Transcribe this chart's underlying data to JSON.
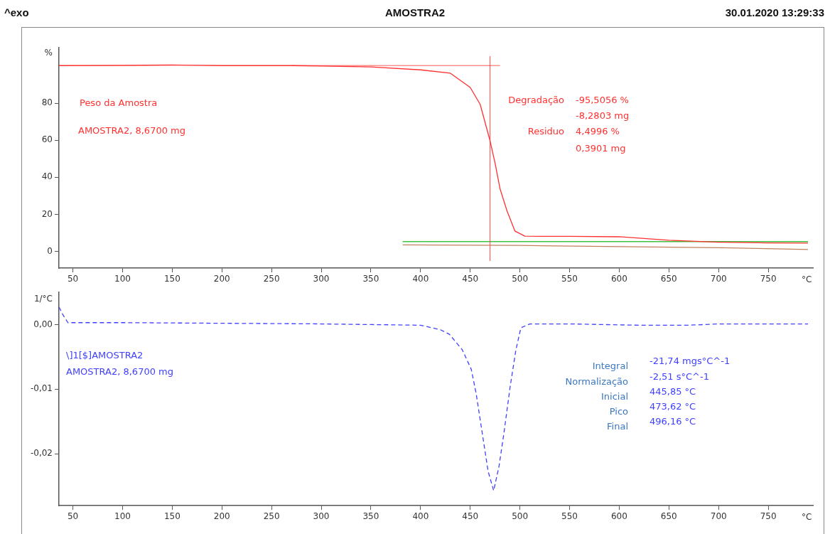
{
  "chart_data": [
    {
      "type": "line",
      "title": "AMOSTRA2",
      "xlabel": "°C",
      "ylabel": "%",
      "xlim": [
        36,
        795
      ],
      "ylim": [
        -9,
        110
      ],
      "xticks": [
        50,
        100,
        150,
        200,
        250,
        300,
        350,
        400,
        450,
        500,
        550,
        600,
        650,
        700,
        750
      ],
      "yticks": [
        0,
        20,
        40,
        60,
        80
      ],
      "grid": false,
      "legend": false,
      "marker": "none",
      "line_style": "solid",
      "series": [
        {
          "color": "#ff3030",
          "x": [
            36,
            40,
            100,
            150,
            200,
            270,
            300,
            350,
            400,
            430,
            450,
            460,
            470,
            475,
            480,
            487,
            495,
            505,
            550,
            600,
            650,
            700,
            750,
            790
          ],
          "values": [
            100.3,
            100.3,
            100.4,
            100.6,
            100.3,
            100.3,
            100.1,
            99.6,
            98,
            96.2,
            88.5,
            79.4,
            59.6,
            47.7,
            33.8,
            21.9,
            11,
            8.2,
            8.1,
            7.9,
            6,
            5,
            4.6,
            4.5
          ]
        },
        {
          "color": "#ff9090",
          "x": [
            270,
            480
          ],
          "values": [
            100.3,
            100.3
          ]
        },
        {
          "color": "#40c040",
          "x": [
            382,
            790
          ],
          "values": [
            5.3,
            5.3
          ]
        },
        {
          "color": "#c08060",
          "x": [
            382,
            500,
            700,
            790
          ],
          "values": [
            3.5,
            3.2,
            2,
            1
          ]
        }
      ],
      "ref_lines": [
        {
          "axis": "x",
          "value": 470,
          "color": "#ff4040"
        }
      ],
      "annotations": [
        "^exo",
        "30.01.2020 13:29:33",
        "Peso da Amostra",
        "AMOSTRA2, 8,6700 mg",
        "Degradação",
        "-95,5056 %",
        "-8,2803 mg",
        "Residuo",
        "4,4996 %",
        "0,3901 mg"
      ]
    },
    {
      "type": "line",
      "xlabel": "°C",
      "ylabel": "1/°C",
      "xlim": [
        36,
        795
      ],
      "ylim": [
        -0.028,
        0.005
      ],
      "xticks": [
        50,
        100,
        150,
        200,
        250,
        300,
        350,
        400,
        450,
        500,
        550,
        600,
        650,
        700,
        750
      ],
      "yticks": [
        {
          "value": 0,
          "label": "0,00"
        },
        {
          "value": -0.01,
          "label": "-0,01"
        },
        {
          "value": -0.02,
          "label": "-0,02"
        }
      ],
      "grid": false,
      "legend": false,
      "marker": "none",
      "line_style": "dashed",
      "series": [
        {
          "color": "#4040ff",
          "x": [
            36,
            40,
            45,
            100,
            200,
            300,
            350,
            400,
            406,
            420,
            429,
            442,
            451,
            456,
            462,
            468,
            473.6,
            479,
            484,
            490,
            496,
            501,
            510,
            550,
            620,
            650,
            670,
            700,
            790
          ],
          "values": [
            0.0027,
            0.0015,
            0.0003,
            0.0003,
            0.0002,
            0.0001,
            0,
            -0.0001,
            -0.0003,
            -0.0008,
            -0.0015,
            -0.0039,
            -0.0069,
            -0.0107,
            -0.0167,
            -0.0227,
            -0.0257,
            -0.0219,
            -0.0167,
            -0.0098,
            -0.0039,
            -0.0005,
            0.0001,
            0.0001,
            -0.0001,
            -0.0001,
            -0.0001,
            0.0001,
            0.0001
          ]
        }
      ],
      "annotations": [
        "\\]1[$]AMOSTRA2",
        "AMOSTRA2, 8,6700 mg",
        "Integral",
        "-21,74 mgs°C^-1",
        "Normalização",
        "-2,51 s°C^-1",
        "Inicial",
        "445,85 °C",
        "Pico",
        "473,62 °C",
        "Final",
        "496,16 °C"
      ]
    }
  ]
}
